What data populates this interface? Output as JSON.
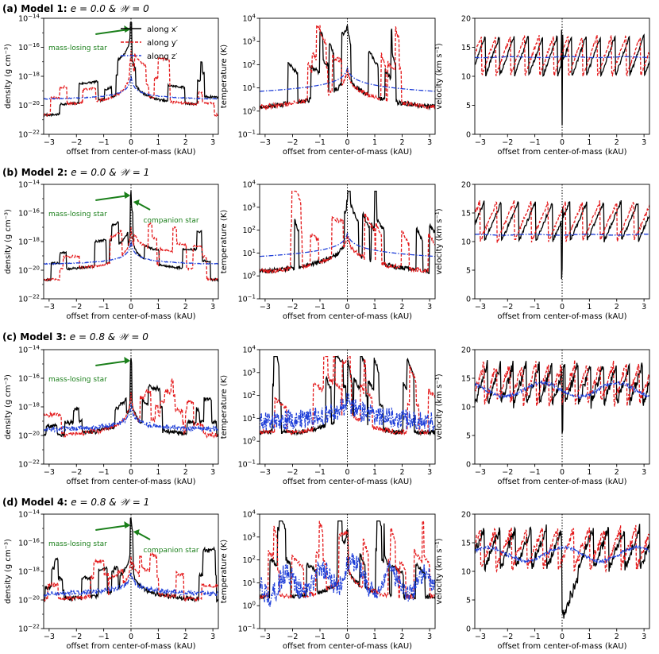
{
  "figure": {
    "rows": [
      {
        "label": "(a) Model 1:",
        "params": "e = 0.0 & 𝒲 = 0",
        "companion": false,
        "ecc": false
      },
      {
        "label": "(b) Model 2:",
        "params": "e = 0.0 & 𝒲 = 1",
        "companion": true,
        "ecc": false
      },
      {
        "label": "(c) Model 3:",
        "params": "e = 0.8 & 𝒲 = 0",
        "companion": false,
        "ecc": true
      },
      {
        "label": "(d) Model 4:",
        "params": "e = 0.8 & 𝒲 = 1",
        "companion": true,
        "ecc": true
      }
    ],
    "legend": [
      "along x′",
      "along y′",
      "along z′"
    ],
    "annotations": {
      "star": "mass-losing star",
      "companion": "companion star"
    },
    "colors": {
      "x": "#000000",
      "y": "#e41a1c",
      "z": "#1f3fd8",
      "annotation": "#1a7f1a"
    }
  },
  "chart_data": [
    {
      "type": "line",
      "quantity": "density",
      "ylabel": "density (g cm⁻³)",
      "xlabel": "offset from center-of-mass (kAU)",
      "scale": "log",
      "xlim": [
        -3.2,
        3.2
      ],
      "ylim": [
        1e-22,
        1e-14
      ],
      "xticks": [
        "−3",
        "−2",
        "−1",
        "0",
        "1",
        "2",
        "3"
      ],
      "yticks": [
        {
          "mantissa": "10",
          "exp": "−22"
        },
        {
          "mantissa": "10",
          "exp": "−20"
        },
        {
          "mantissa": "10",
          "exp": "−18"
        },
        {
          "mantissa": "10",
          "exp": "−16"
        },
        {
          "mantissa": "10",
          "exp": "−14"
        }
      ],
      "series_names": [
        "along x′",
        "along y′",
        "along z′"
      ]
    },
    {
      "type": "line",
      "quantity": "temperature",
      "ylabel": "temperature (K)",
      "xlabel": "offset from center-of-mass (kAU)",
      "scale": "log",
      "xlim": [
        -3.2,
        3.2
      ],
      "ylim": [
        0.1,
        10000
      ],
      "xticks": [
        "−3",
        "−2",
        "−1",
        "0",
        "1",
        "2",
        "3"
      ],
      "yticks": [
        {
          "mantissa": "10",
          "exp": "−1"
        },
        {
          "mantissa": "10",
          "exp": "0"
        },
        {
          "mantissa": "10",
          "exp": "1"
        },
        {
          "mantissa": "10",
          "exp": "2"
        },
        {
          "mantissa": "10",
          "exp": "3"
        },
        {
          "mantissa": "10",
          "exp": "4"
        }
      ],
      "series_names": [
        "along x′",
        "along y′",
        "along z′"
      ]
    },
    {
      "type": "line",
      "quantity": "velocity",
      "ylabel": "velocity (km s⁻¹)",
      "xlabel": "offset from center-of-mass (kAU)",
      "scale": "linear",
      "xlim": [
        -3.2,
        3.2
      ],
      "ylim": [
        0,
        20
      ],
      "xticks": [
        "−3",
        "−2",
        "−1",
        "0",
        "1",
        "2",
        "3"
      ],
      "yticks": [
        {
          "mantissa": "0",
          "exp": ""
        },
        {
          "mantissa": "5",
          "exp": ""
        },
        {
          "mantissa": "10",
          "exp": ""
        },
        {
          "mantissa": "15",
          "exp": ""
        },
        {
          "mantissa": "20",
          "exp": ""
        }
      ],
      "series_names": [
        "along x′",
        "along y′",
        "along z′"
      ]
    }
  ]
}
